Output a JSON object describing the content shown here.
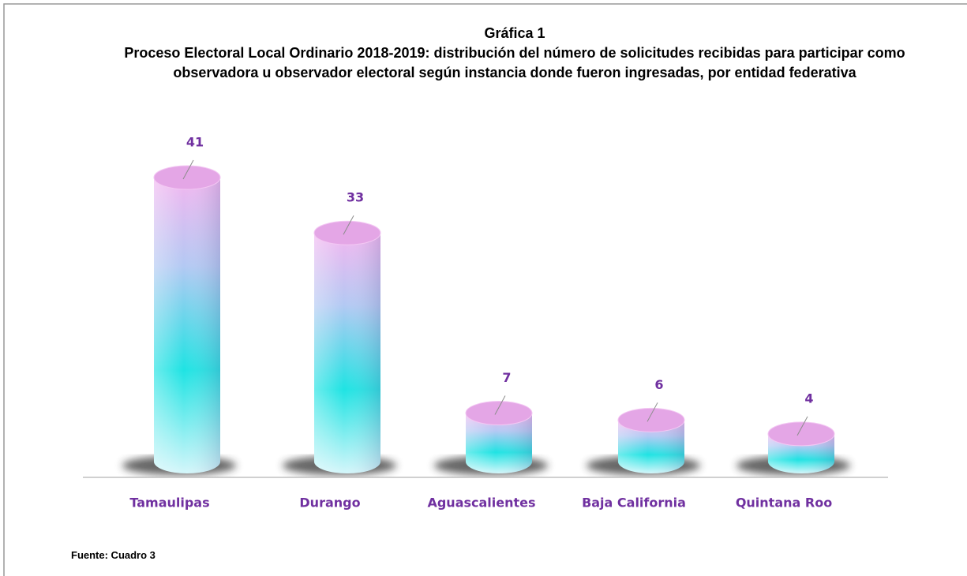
{
  "chart_data": {
    "type": "bar",
    "title": "Gráfica 1",
    "subtitle": "Proceso Electoral Local Ordinario 2018-2019: distribución del número de solicitudes recibidas para participar como observadora u observador electoral según instancia donde fueron ingresadas, por entidad federativa",
    "categories": [
      "Tamaulipas",
      "Durango",
      "Aguascalientes",
      "Baja California",
      "Quintana Roo"
    ],
    "values": [
      41,
      33,
      7,
      6,
      4
    ],
    "source": "Fuente: Cuadro  3"
  }
}
